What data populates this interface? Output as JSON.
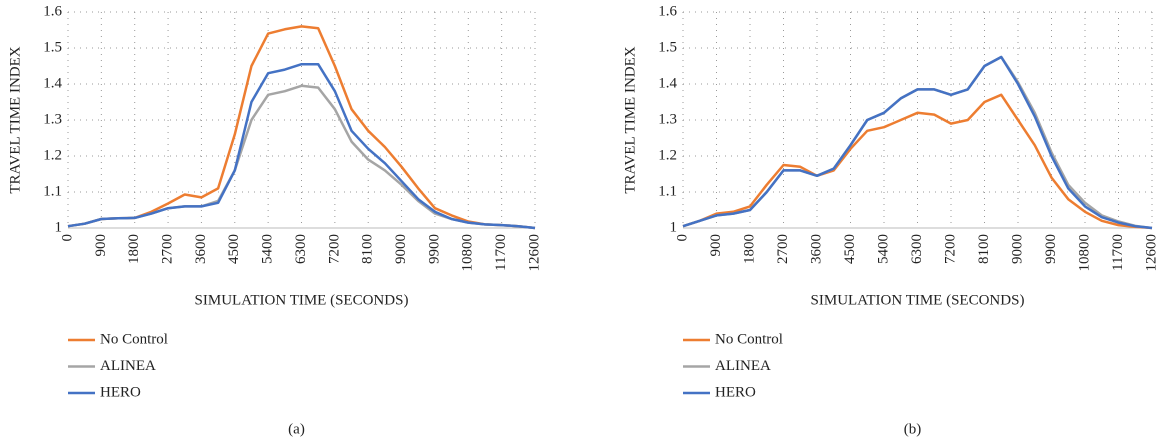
{
  "chart_data": [
    {
      "type": "line",
      "caption": "(a)",
      "xlabel": "SIMULATION TIME (SECONDS)",
      "ylabel": "TRAVEL TIME INDEX",
      "x": [
        0,
        450,
        900,
        1350,
        1800,
        2250,
        2700,
        3150,
        3600,
        4050,
        4500,
        4950,
        5400,
        5850,
        6300,
        6750,
        7200,
        7650,
        8100,
        8550,
        9000,
        9450,
        9900,
        10350,
        10800,
        11250,
        11700,
        12150,
        12600
      ],
      "xlim": [
        0,
        12600
      ],
      "xticks": [
        0,
        900,
        1800,
        2700,
        3600,
        4500,
        5400,
        6300,
        7200,
        8100,
        9000,
        9900,
        10800,
        11700,
        12600
      ],
      "ylim": [
        1,
        1.6
      ],
      "yticks": [
        1,
        1.1,
        1.2,
        1.3,
        1.4,
        1.5,
        1.6
      ],
      "grid": true,
      "series": [
        {
          "name": "No Control",
          "color": "#ed7d31",
          "values": [
            1.005,
            1.012,
            1.025,
            1.027,
            1.028,
            1.045,
            1.068,
            1.093,
            1.085,
            1.11,
            1.26,
            1.45,
            1.54,
            1.552,
            1.56,
            1.555,
            1.45,
            1.33,
            1.27,
            1.225,
            1.17,
            1.11,
            1.055,
            1.035,
            1.018,
            1.01,
            1.008,
            1.005,
            1.0
          ]
        },
        {
          "name": "ALINEA",
          "color": "#a5a5a5",
          "values": [
            1.005,
            1.012,
            1.025,
            1.027,
            1.028,
            1.04,
            1.055,
            1.06,
            1.06,
            1.075,
            1.16,
            1.3,
            1.37,
            1.38,
            1.395,
            1.39,
            1.33,
            1.24,
            1.19,
            1.16,
            1.12,
            1.075,
            1.04,
            1.025,
            1.015,
            1.01,
            1.008,
            1.005,
            1.0
          ]
        },
        {
          "name": "HERO",
          "color": "#4472c4",
          "values": [
            1.005,
            1.012,
            1.025,
            1.027,
            1.028,
            1.04,
            1.055,
            1.06,
            1.06,
            1.07,
            1.16,
            1.35,
            1.43,
            1.44,
            1.455,
            1.455,
            1.38,
            1.27,
            1.22,
            1.18,
            1.13,
            1.08,
            1.045,
            1.025,
            1.015,
            1.01,
            1.008,
            1.005,
            1.0
          ]
        }
      ]
    },
    {
      "type": "line",
      "caption": "(b)",
      "xlabel": "SIMULATION TIME (SECONDS)",
      "ylabel": "TRAVEL TIME INDEX",
      "x": [
        0,
        450,
        900,
        1350,
        1800,
        2250,
        2700,
        3150,
        3600,
        4050,
        4500,
        4950,
        5400,
        5850,
        6300,
        6750,
        7200,
        7650,
        8100,
        8550,
        9000,
        9450,
        9900,
        10350,
        10800,
        11250,
        11700,
        12150,
        12600
      ],
      "xlim": [
        0,
        12600
      ],
      "xticks": [
        0,
        900,
        1800,
        2700,
        3600,
        4500,
        5400,
        6300,
        7200,
        8100,
        9000,
        9900,
        10800,
        11700,
        12600
      ],
      "ylim": [
        1,
        1.6
      ],
      "yticks": [
        1,
        1.1,
        1.2,
        1.3,
        1.4,
        1.5,
        1.6
      ],
      "grid": true,
      "series": [
        {
          "name": "No Control",
          "color": "#ed7d31",
          "values": [
            1.005,
            1.02,
            1.04,
            1.045,
            1.06,
            1.12,
            1.175,
            1.17,
            1.145,
            1.16,
            1.22,
            1.27,
            1.28,
            1.3,
            1.32,
            1.315,
            1.29,
            1.3,
            1.35,
            1.37,
            1.3,
            1.23,
            1.14,
            1.08,
            1.045,
            1.02,
            1.008,
            1.003,
            1.0
          ]
        },
        {
          "name": "ALINEA",
          "color": "#a5a5a5",
          "values": [
            1.005,
            1.02,
            1.035,
            1.04,
            1.05,
            1.1,
            1.16,
            1.16,
            1.145,
            1.165,
            1.23,
            1.3,
            1.32,
            1.36,
            1.385,
            1.385,
            1.37,
            1.385,
            1.45,
            1.475,
            1.405,
            1.32,
            1.21,
            1.12,
            1.07,
            1.035,
            1.018,
            1.006,
            1.0
          ]
        },
        {
          "name": "HERO",
          "color": "#4472c4",
          "values": [
            1.005,
            1.02,
            1.035,
            1.04,
            1.05,
            1.1,
            1.16,
            1.16,
            1.145,
            1.165,
            1.23,
            1.3,
            1.32,
            1.36,
            1.385,
            1.385,
            1.37,
            1.385,
            1.45,
            1.475,
            1.4,
            1.31,
            1.2,
            1.11,
            1.06,
            1.03,
            1.015,
            1.005,
            1.0
          ]
        }
      ]
    }
  ]
}
